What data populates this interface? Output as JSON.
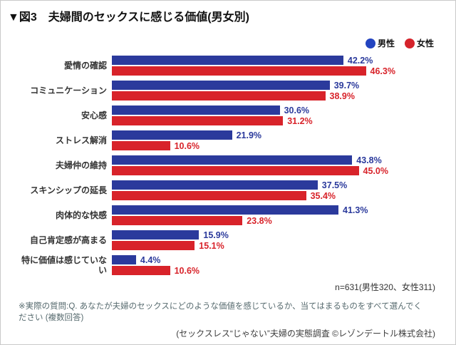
{
  "title": "▼図3　夫婦間のセックスに感じる価値(男女別)",
  "legend": {
    "male_label": "男性",
    "female_label": "女性"
  },
  "colors": {
    "male": "#2b3a9c",
    "female": "#d8232a",
    "male_dot": "#2344c0",
    "female_dot": "#d5232b"
  },
  "n_note": "n=631(男性320、女性311)",
  "footnote": {
    "line1": "※実際の質問:Q. あなたが夫婦のセックスにどのような価値を感じているか、当てはまるものをすべて選んでく",
    "line2": "ださい (複数回答)"
  },
  "source": "(セックスレス“じゃない”夫婦の実態調査 ©レゾンデートル株式会社)",
  "chart_data": {
    "type": "bar",
    "orientation": "horizontal",
    "title": "図3 夫婦間のセックスに感じる価値(男女別)",
    "categories": [
      "愛情の確認",
      "コミュニケーション",
      "安心感",
      "ストレス解消",
      "夫婦仲の維持",
      "スキンシップの延長",
      "肉体的な快感",
      "自己肯定感が高まる",
      "特に価値は感じていない"
    ],
    "series": [
      {
        "name": "男性",
        "color": "#2b3a9c",
        "values": [
          42.2,
          39.7,
          30.6,
          21.9,
          43.8,
          37.5,
          41.3,
          15.9,
          4.4
        ]
      },
      {
        "name": "女性",
        "color": "#d8232a",
        "values": [
          46.3,
          38.9,
          31.2,
          10.6,
          45.0,
          35.4,
          23.8,
          15.1,
          10.6
        ]
      }
    ],
    "value_suffix": "%",
    "xlim": [
      0,
      50
    ],
    "grid": false,
    "legend_position": "top-right",
    "data_labels": true
  }
}
